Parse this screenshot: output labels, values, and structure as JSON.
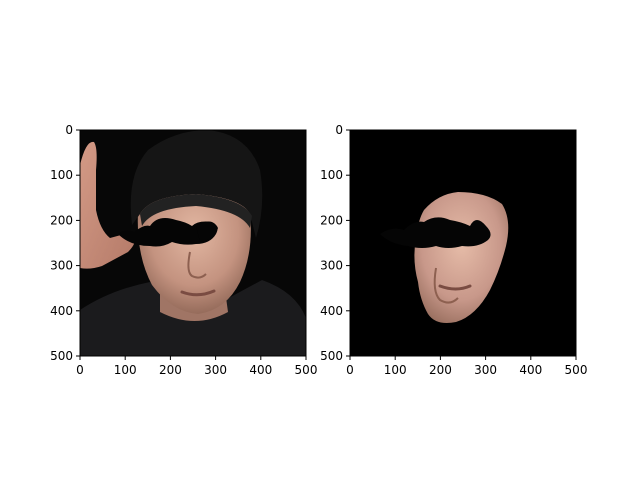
{
  "chart_data": [
    {
      "type": "image",
      "title": "",
      "xlabel": "",
      "ylabel": "",
      "xlim": [
        0,
        500
      ],
      "ylim": [
        500,
        0
      ],
      "xticks": [
        0,
        100,
        200,
        300,
        400,
        500
      ],
      "yticks": [
        0,
        100,
        200,
        300,
        400,
        500
      ],
      "xtick_labels": [
        "0",
        "100",
        "200",
        "300",
        "400",
        "500"
      ],
      "ytick_labels": [
        "0",
        "100",
        "200",
        "300",
        "400",
        "500"
      ],
      "content": "portrait photo of a man in a black beanie with a black mustache overlay across the eyes",
      "background_color": "#000000",
      "grid": false
    },
    {
      "type": "image",
      "title": "",
      "xlabel": "",
      "ylabel": "",
      "xlim": [
        0,
        500
      ],
      "ylim": [
        500,
        0
      ],
      "xticks": [
        0,
        100,
        200,
        300,
        400,
        500
      ],
      "yticks": [
        0,
        100,
        200,
        300,
        400,
        500
      ],
      "xtick_labels": [
        "0",
        "100",
        "200",
        "300",
        "400",
        "500"
      ],
      "ytick_labels": [
        "0",
        "100",
        "200",
        "300",
        "400",
        "500"
      ],
      "content": "segmented face region on a black background with the black mustache overlay across the eyes",
      "background_color": "#000000",
      "grid": false
    }
  ]
}
